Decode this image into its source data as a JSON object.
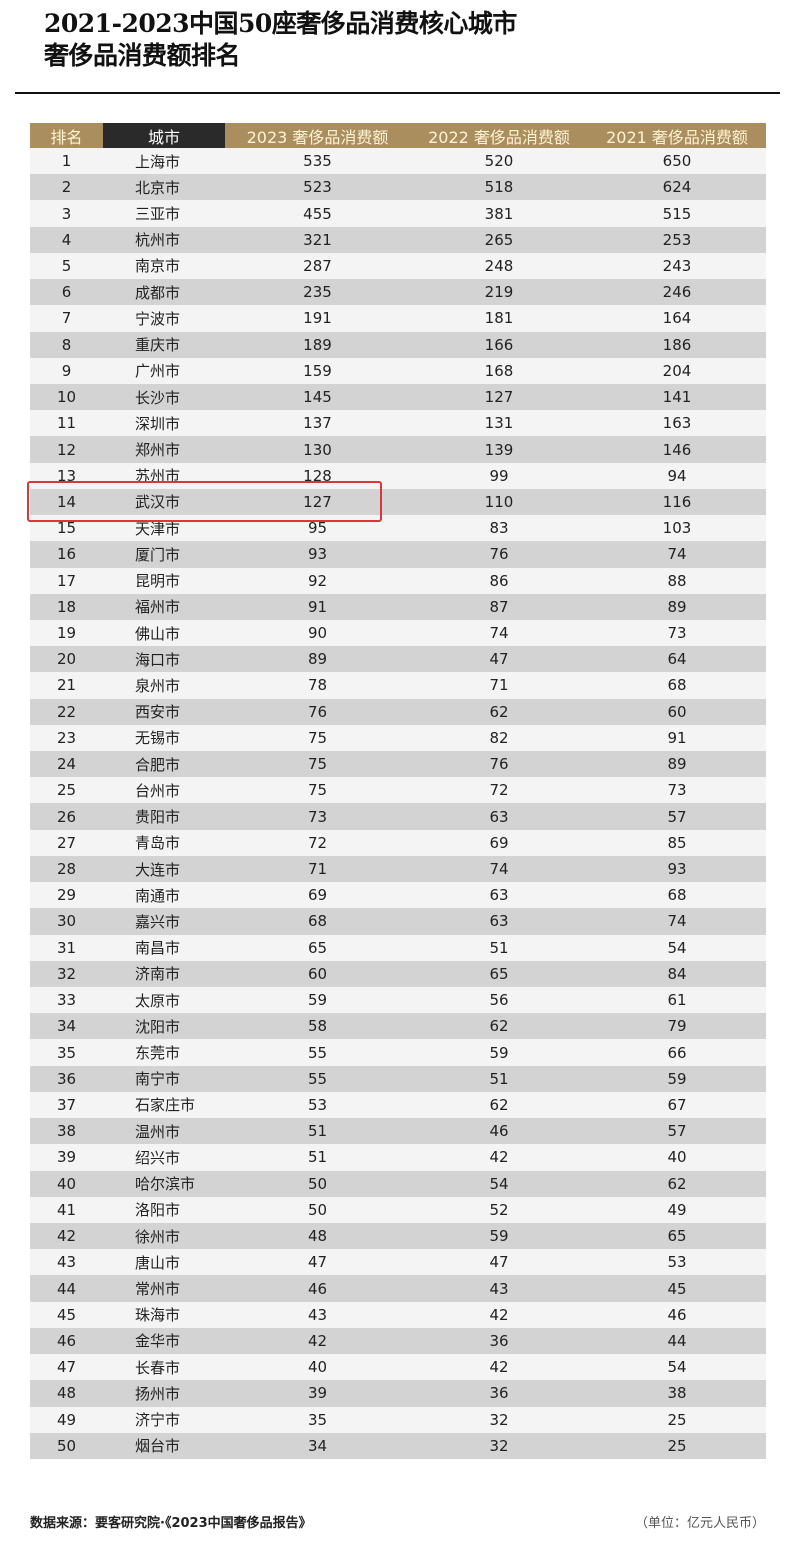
{
  "title": {
    "line1": "2021-2023中国50座奢侈品消费核心城市",
    "line2": "奢侈品消费额排名"
  },
  "table": {
    "headers": [
      "排名",
      "城市",
      "2023 奢侈品消费额",
      "2022 奢侈品消费额",
      "2021 奢侈品消费额"
    ],
    "rows": [
      [
        "1",
        "上海市",
        "535",
        "520",
        "650"
      ],
      [
        "2",
        "北京市",
        "523",
        "518",
        "624"
      ],
      [
        "3",
        "三亚市",
        "455",
        "381",
        "515"
      ],
      [
        "4",
        "杭州市",
        "321",
        "265",
        "253"
      ],
      [
        "5",
        "南京市",
        "287",
        "248",
        "243"
      ],
      [
        "6",
        "成都市",
        "235",
        "219",
        "246"
      ],
      [
        "7",
        "宁波市",
        "191",
        "181",
        "164"
      ],
      [
        "8",
        "重庆市",
        "189",
        "166",
        "186"
      ],
      [
        "9",
        "广州市",
        "159",
        "168",
        "204"
      ],
      [
        "10",
        "长沙市",
        "145",
        "127",
        "141"
      ],
      [
        "11",
        "深圳市",
        "137",
        "131",
        "163"
      ],
      [
        "12",
        "郑州市",
        "130",
        "139",
        "146"
      ],
      [
        "13",
        "苏州市",
        "128",
        "99",
        "94"
      ],
      [
        "14",
        "武汉市",
        "127",
        "110",
        "116"
      ],
      [
        "15",
        "天津市",
        "95",
        "83",
        "103"
      ],
      [
        "16",
        "厦门市",
        "93",
        "76",
        "74"
      ],
      [
        "17",
        "昆明市",
        "92",
        "86",
        "88"
      ],
      [
        "18",
        "福州市",
        "91",
        "87",
        "89"
      ],
      [
        "19",
        "佛山市",
        "90",
        "74",
        "73"
      ],
      [
        "20",
        "海口市",
        "89",
        "47",
        "64"
      ],
      [
        "21",
        "泉州市",
        "78",
        "71",
        "68"
      ],
      [
        "22",
        "西安市",
        "76",
        "62",
        "60"
      ],
      [
        "23",
        "无锡市",
        "75",
        "82",
        "91"
      ],
      [
        "24",
        "合肥市",
        "75",
        "76",
        "89"
      ],
      [
        "25",
        "台州市",
        "75",
        "72",
        "73"
      ],
      [
        "26",
        "贵阳市",
        "73",
        "63",
        "57"
      ],
      [
        "27",
        "青岛市",
        "72",
        "69",
        "85"
      ],
      [
        "28",
        "大连市",
        "71",
        "74",
        "93"
      ],
      [
        "29",
        "南通市",
        "69",
        "63",
        "68"
      ],
      [
        "30",
        "嘉兴市",
        "68",
        "63",
        "74"
      ],
      [
        "31",
        "南昌市",
        "65",
        "51",
        "54"
      ],
      [
        "32",
        "济南市",
        "60",
        "65",
        "84"
      ],
      [
        "33",
        "太原市",
        "59",
        "56",
        "61"
      ],
      [
        "34",
        "沈阳市",
        "58",
        "62",
        "79"
      ],
      [
        "35",
        "东莞市",
        "55",
        "59",
        "66"
      ],
      [
        "36",
        "南宁市",
        "55",
        "51",
        "59"
      ],
      [
        "37",
        "石家庄市",
        "53",
        "62",
        "67"
      ],
      [
        "38",
        "温州市",
        "51",
        "46",
        "57"
      ],
      [
        "39",
        "绍兴市",
        "51",
        "42",
        "40"
      ],
      [
        "40",
        "哈尔滨市",
        "50",
        "54",
        "62"
      ],
      [
        "41",
        "洛阳市",
        "50",
        "52",
        "49"
      ],
      [
        "42",
        "徐州市",
        "48",
        "59",
        "65"
      ],
      [
        "43",
        "唐山市",
        "47",
        "47",
        "53"
      ],
      [
        "44",
        "常州市",
        "46",
        "43",
        "45"
      ],
      [
        "45",
        "珠海市",
        "43",
        "42",
        "46"
      ],
      [
        "46",
        "金华市",
        "42",
        "36",
        "44"
      ],
      [
        "47",
        "长春市",
        "40",
        "42",
        "54"
      ],
      [
        "48",
        "扬州市",
        "39",
        "36",
        "38"
      ],
      [
        "49",
        "济宁市",
        "35",
        "32",
        "25"
      ],
      [
        "50",
        "烟台市",
        "34",
        "32",
        "25"
      ]
    ],
    "highlighted_rank": "14"
  },
  "colors": {
    "header_gold": "#ab8e5e",
    "header_dark": "#2a2a2a",
    "highlight_border": "#d8383a",
    "row_light": "#f4f4f4",
    "row_gray": "#d3d3d3"
  },
  "footer": {
    "source": "数据来源：要客研究院·《2023中国奢侈品报告》",
    "unit": "（单位：亿元人民币）"
  }
}
